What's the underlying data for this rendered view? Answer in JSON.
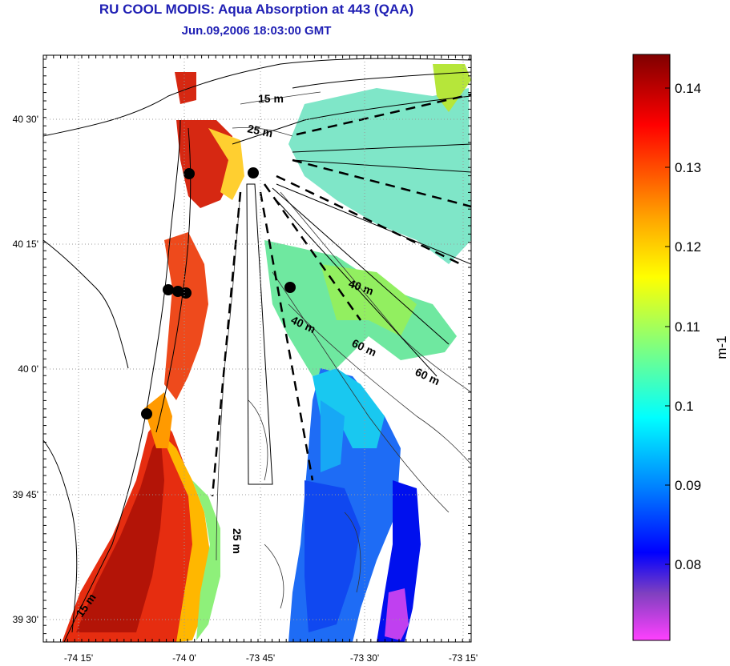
{
  "title": "RU COOL MODIS: Aqua Absorption at 443 (QAA)",
  "subtitle": "Jun.09,2006 18:03:00 GMT",
  "map": {
    "lat_ticks": [
      "40 30'",
      "40 15'",
      "40 0'",
      "39 45'",
      "39 30'"
    ],
    "lon_ticks": [
      "-74 15'",
      "-74 0'",
      "-73 45'",
      "-73 30'",
      "-73 15'"
    ],
    "depth_labels": [
      "15 m",
      "25 m",
      "40 m",
      "40 m",
      "60 m",
      "60 m",
      "25 m",
      "15 m"
    ],
    "stations_count": 7
  },
  "colorbar": {
    "label": "m-1",
    "ticks": [
      "0.14",
      "0.13",
      "0.12",
      "0.11",
      "0.1",
      "0.09",
      "0.08"
    ],
    "stops": [
      "#7f0000",
      "#ff0000",
      "#ffa500",
      "#ffff00",
      "#7fff7f",
      "#00ffff",
      "#0080ff",
      "#0000ff",
      "#8040c0",
      "#ff40ff"
    ]
  }
}
